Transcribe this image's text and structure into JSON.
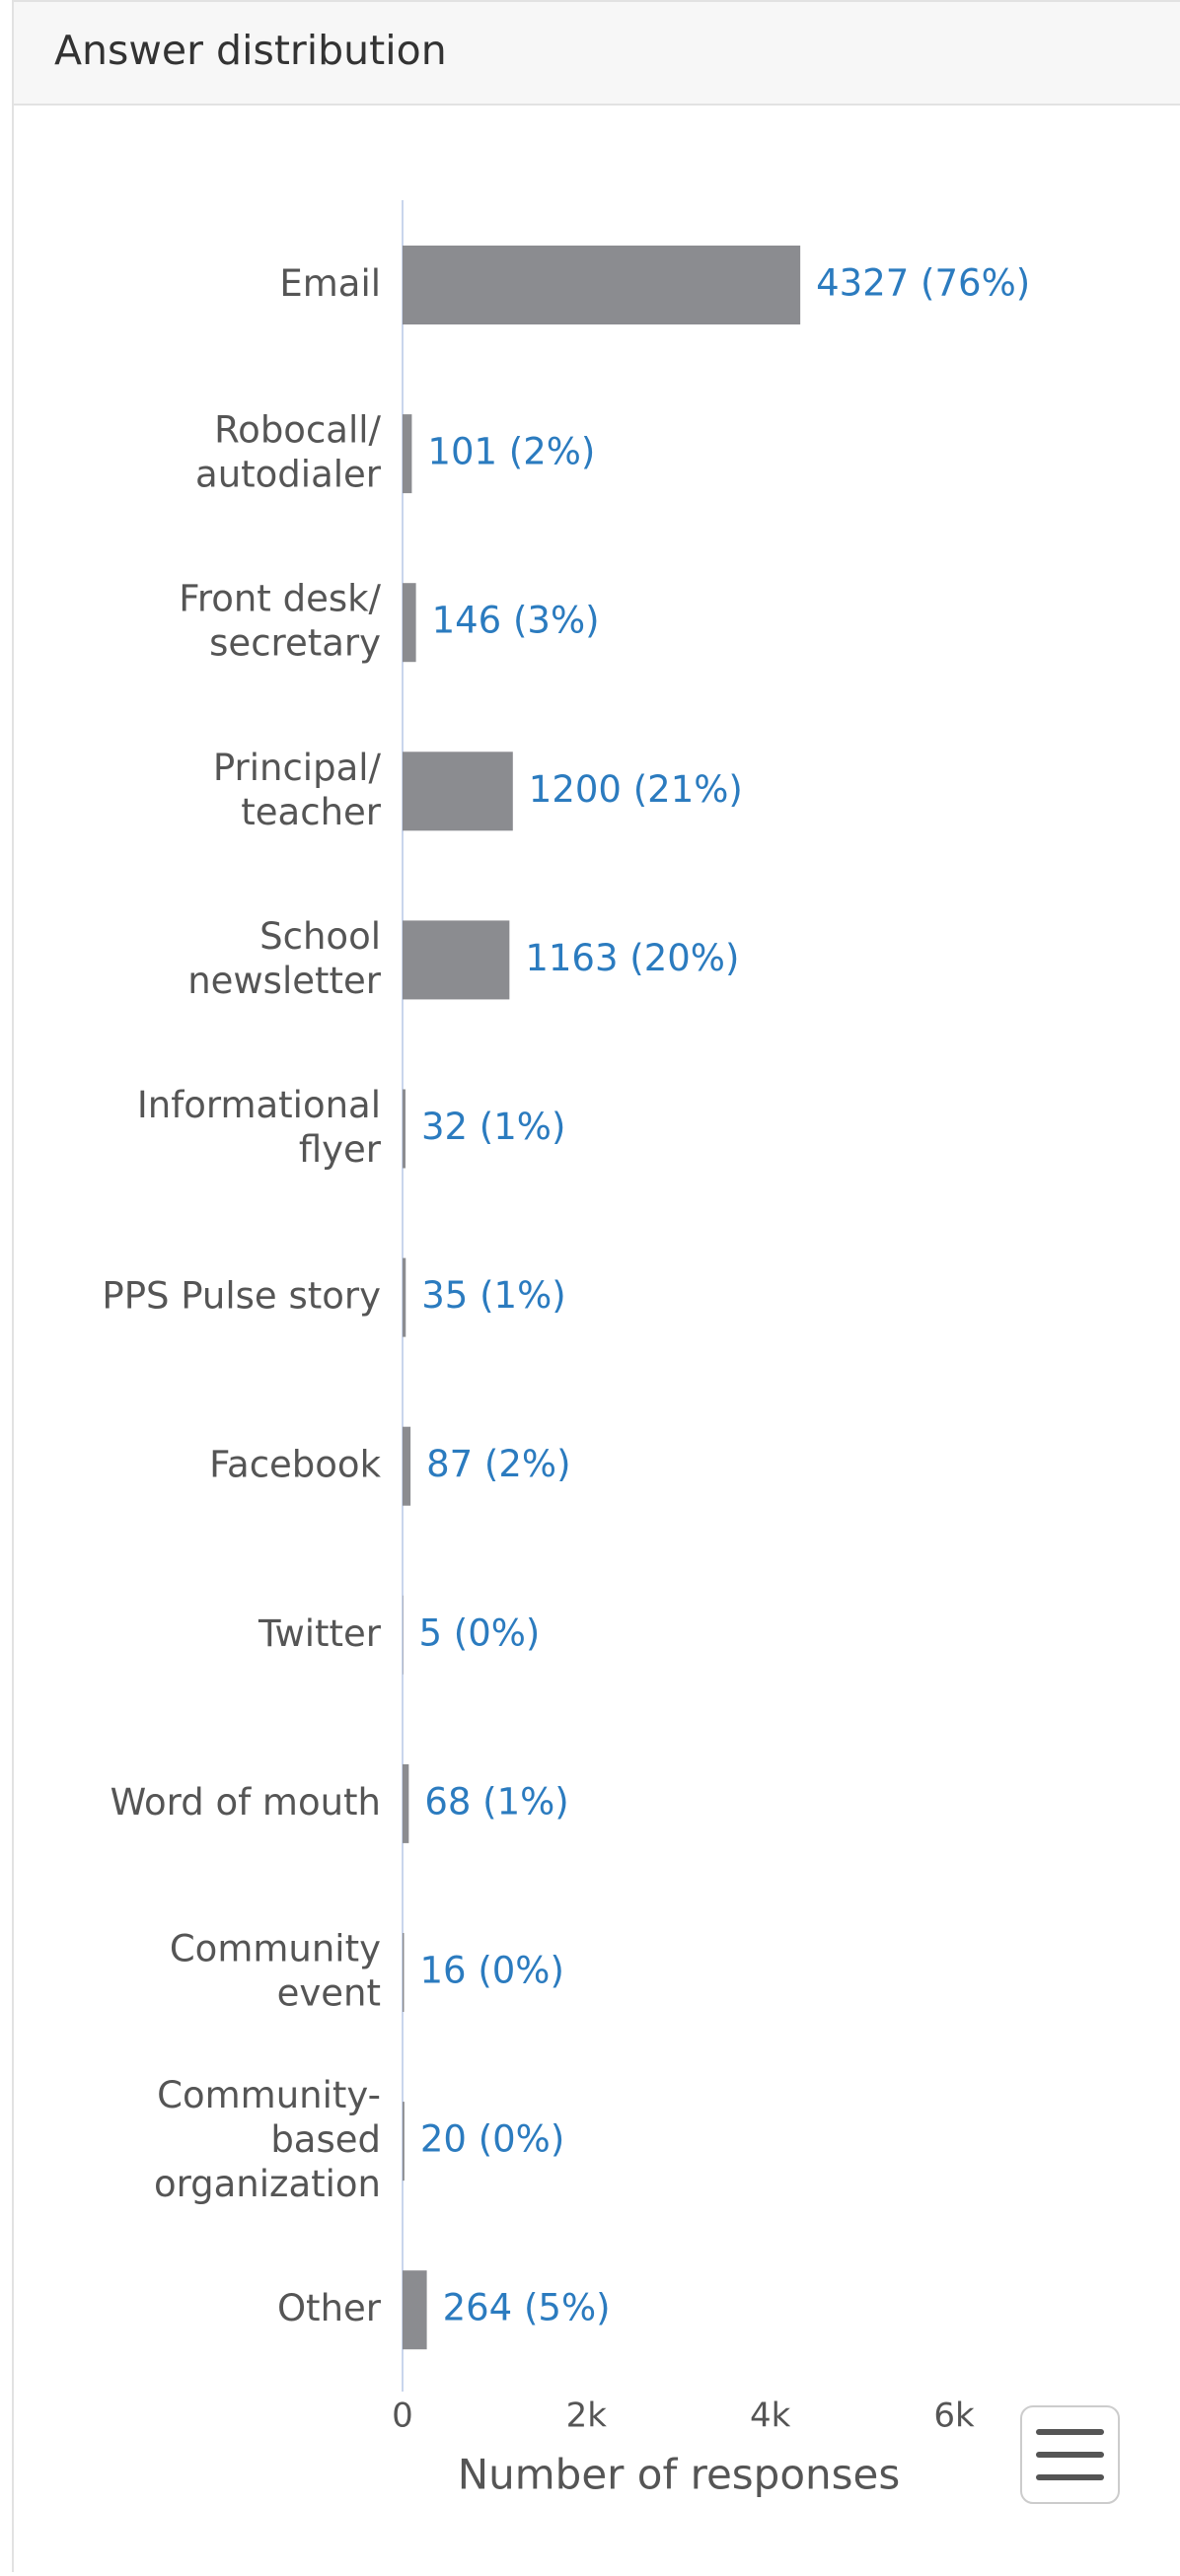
{
  "header": {
    "title": "Answer distribution"
  },
  "chart_data": {
    "type": "bar",
    "orientation": "horizontal",
    "categories": [
      "Email",
      "Robocall/\nautodialer",
      "Front desk/\nsecretary",
      "Principal/\nteacher",
      "School\nnewsletter",
      "Informational\nflyer",
      "PPS Pulse story",
      "Facebook",
      "Twitter",
      "Word of mouth",
      "Community\nevent",
      "Community-\nbased\norganization",
      "Other"
    ],
    "values": [
      4327,
      101,
      146,
      1200,
      1163,
      32,
      35,
      87,
      5,
      68,
      16,
      20,
      264
    ],
    "value_labels": [
      "4327 (76%)",
      "101 (2%)",
      "146 (3%)",
      "1200 (21%)",
      "1163 (20%)",
      "32 (1%)",
      "35 (1%)",
      "87 (2%)",
      "5 (0%)",
      "68 (1%)",
      "16 (0%)",
      "20 (0%)",
      "264 (5%)"
    ],
    "color": "#8b8c90",
    "xlim": [
      0,
      6000
    ],
    "xticks": [
      {
        "value": 0,
        "label": "0"
      },
      {
        "value": 2000,
        "label": "2k"
      },
      {
        "value": 4000,
        "label": "4k"
      },
      {
        "value": 6000,
        "label": "6k"
      }
    ],
    "x_label": "Number of responses",
    "grid": false
  }
}
